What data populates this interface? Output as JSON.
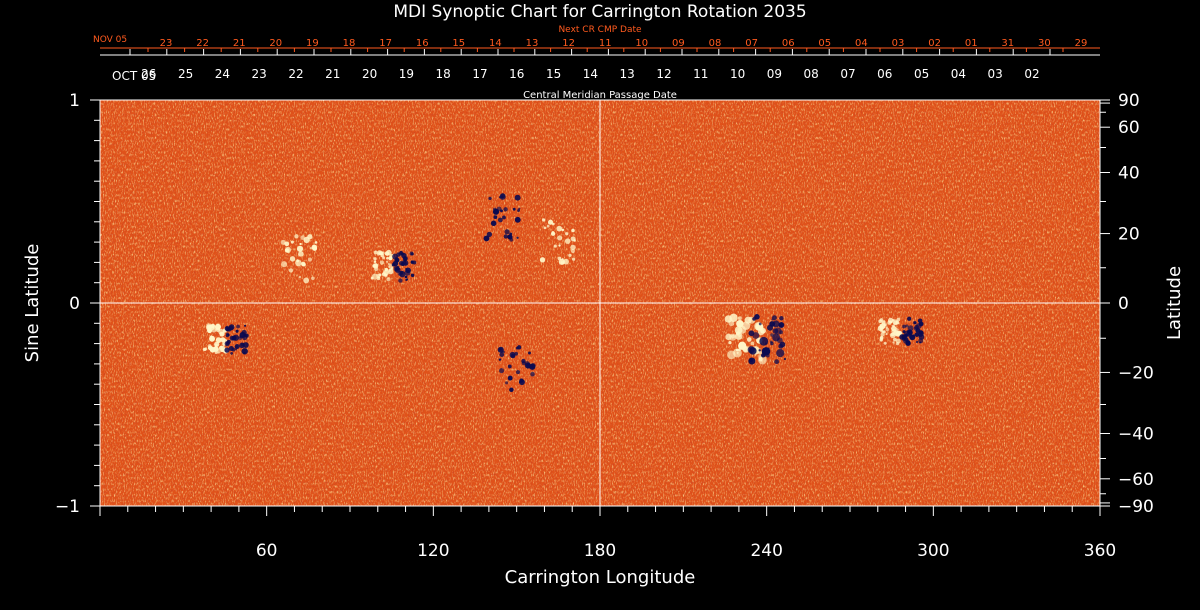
{
  "chart_data": {
    "type": "heatmap",
    "title": "MDI Synoptic Chart for Carrington Rotation 2035",
    "xlabel": "Carrington Longitude",
    "ylabel_left": "Sine Latitude",
    "ylabel_right": "Latitude",
    "top_axis_next_label": "Next CR CMP Date",
    "top_axis_label": "Central Meridian Passage Date",
    "xlim": [
      0,
      360
    ],
    "ylim": [
      -1,
      1
    ],
    "x_ticks": [
      60,
      120,
      180,
      240,
      300,
      360
    ],
    "y_ticks_left": [
      {
        "value": 1,
        "label": "1"
      },
      {
        "value": 0,
        "label": "0"
      },
      {
        "value": -1,
        "label": "−1"
      }
    ],
    "latitude_ticks": [
      90,
      60,
      40,
      20,
      0,
      -20,
      -40,
      -60,
      -90
    ],
    "latitude_tick_labels": [
      "90",
      "60",
      "40",
      "20",
      "0",
      "−20",
      "−40",
      "−60",
      "−90"
    ],
    "grid_lines": {
      "longitude": 180,
      "sine_latitude": 0
    },
    "cmp_dates": {
      "month_label": "OCT 05",
      "days": [
        "26",
        "25",
        "24",
        "23",
        "22",
        "21",
        "20",
        "19",
        "18",
        "17",
        "16",
        "15",
        "14",
        "13",
        "12",
        "11",
        "10",
        "09",
        "08",
        "07",
        "06",
        "05",
        "04",
        "03",
        "02"
      ]
    },
    "next_cmp_dates": {
      "month_label": "NOV 05",
      "days": [
        "23",
        "22",
        "21",
        "20",
        "19",
        "18",
        "17",
        "16",
        "15",
        "14",
        "13",
        "12",
        "11",
        "10",
        "09",
        "08",
        "07",
        "06",
        "05",
        "04",
        "03",
        "02",
        "01",
        "31",
        "30",
        "29"
      ]
    },
    "colormap": {
      "background": "#e0521a",
      "positive": "#fff6c8",
      "negative": "#0a0a50"
    },
    "active_regions": [
      {
        "lon": 236,
        "sinlat": -0.18,
        "polarity": "bipolar"
      },
      {
        "lon": 288,
        "sinlat": -0.14,
        "polarity": "bipolar"
      },
      {
        "lon": 105,
        "sinlat": 0.18,
        "polarity": "bipolar"
      },
      {
        "lon": 145,
        "sinlat": 0.42,
        "polarity": "negative"
      },
      {
        "lon": 45,
        "sinlat": -0.18,
        "polarity": "bipolar"
      },
      {
        "lon": 72,
        "sinlat": 0.22,
        "polarity": "positive"
      },
      {
        "lon": 165,
        "sinlat": 0.3,
        "polarity": "positive"
      },
      {
        "lon": 150,
        "sinlat": -0.32,
        "polarity": "negative"
      }
    ]
  }
}
